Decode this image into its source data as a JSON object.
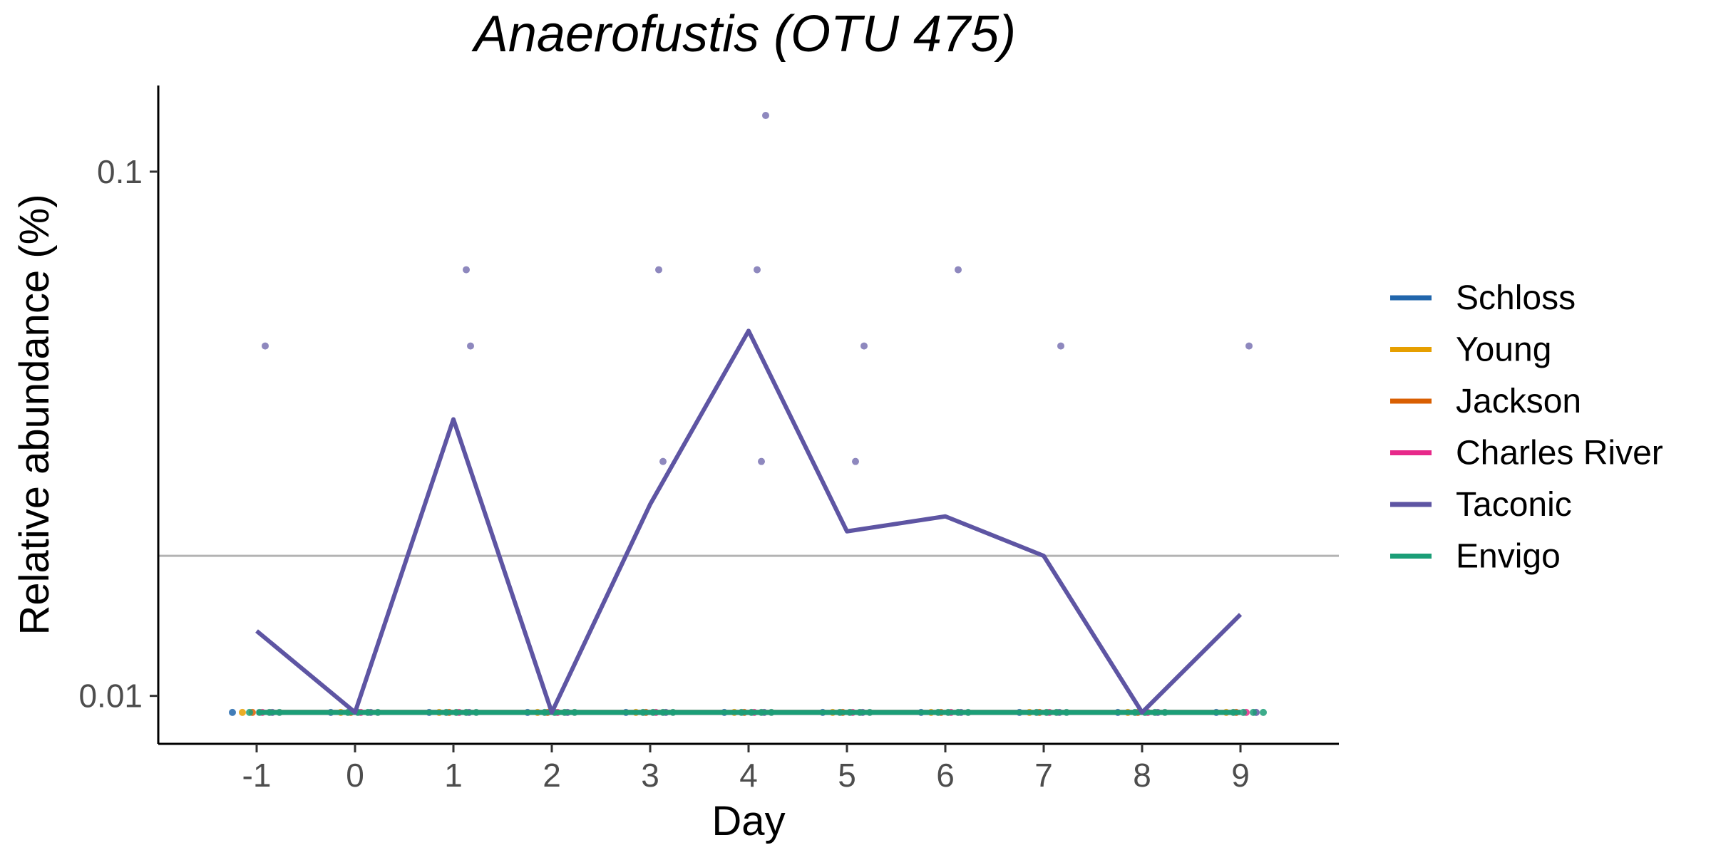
{
  "chart_data": {
    "type": "line",
    "title": "Anaerofustis (OTU 475)",
    "xlabel": "Day",
    "ylabel": "Relative abundance (%)",
    "x_ticks": [
      -1,
      0,
      1,
      2,
      3,
      4,
      5,
      6,
      7,
      8,
      9
    ],
    "x_range": [
      -2,
      10
    ],
    "y_scale": "log10",
    "y_ticks": [
      0.01,
      0.1
    ],
    "y_tick_labels": [
      "0.01",
      "0.1"
    ],
    "y_range": [
      0.0081,
      0.146
    ],
    "limit_of_detection": 0.0185,
    "grid": false,
    "legend_position": "right",
    "series": [
      {
        "name": "Schloss",
        "color": "#2166ac",
        "x": [
          -1,
          0,
          1,
          2,
          3,
          4,
          5,
          6,
          7,
          8,
          9
        ],
        "median": [
          0.0093,
          0.0093,
          0.0093,
          0.0093,
          0.0093,
          0.0093,
          0.0093,
          0.0093,
          0.0093,
          0.0093,
          0.0093
        ]
      },
      {
        "name": "Young",
        "color": "#e69f00",
        "x": [
          -1,
          0,
          1,
          2,
          3,
          4,
          5,
          6,
          7,
          8,
          9
        ],
        "median": [
          0.0093,
          0.0093,
          0.0093,
          0.0093,
          0.0093,
          0.0093,
          0.0093,
          0.0093,
          0.0093,
          0.0093,
          0.0093
        ]
      },
      {
        "name": "Jackson",
        "color": "#d95f02",
        "x": [
          -1,
          0,
          1,
          2,
          3,
          4,
          5,
          6,
          7,
          8,
          9
        ],
        "median": [
          0.0093,
          0.0093,
          0.0093,
          0.0093,
          0.0093,
          0.0093,
          0.0093,
          0.0093,
          0.0093,
          0.0093,
          0.0093
        ]
      },
      {
        "name": "Charles River",
        "color": "#e7298a",
        "x": [
          -1,
          0,
          1,
          2,
          3,
          4,
          5,
          6,
          7,
          8,
          9
        ],
        "median": [
          0.0093,
          0.0093,
          0.0093,
          0.0093,
          0.0093,
          0.0093,
          0.0093,
          0.0093,
          0.0093,
          0.0093,
          0.0093
        ]
      },
      {
        "name": "Taconic",
        "color": "#5e55a3",
        "x": [
          -1,
          0,
          1,
          2,
          3,
          4,
          5,
          6,
          7,
          8,
          9
        ],
        "median": [
          0.0133,
          0.0093,
          0.0337,
          0.0093,
          0.0232,
          0.0497,
          0.0206,
          0.022,
          0.0185,
          0.0093,
          0.0143
        ]
      },
      {
        "name": "Envigo",
        "color": "#1b9e77",
        "x": [
          -1,
          0,
          1,
          2,
          3,
          4,
          5,
          6,
          7,
          8,
          9
        ],
        "median": [
          0.0093,
          0.0093,
          0.0093,
          0.0093,
          0.0093,
          0.0093,
          0.0093,
          0.0093,
          0.0093,
          0.0093,
          0.0093
        ]
      }
    ],
    "points": [
      {
        "series": "Taconic",
        "x": -1,
        "y": 0.0465
      },
      {
        "series": "Taconic",
        "x": 1,
        "y": 0.065
      },
      {
        "series": "Taconic",
        "x": 1,
        "y": 0.0465
      },
      {
        "series": "Taconic",
        "x": 3,
        "y": 0.065
      },
      {
        "series": "Taconic",
        "x": 3,
        "y": 0.028
      },
      {
        "series": "Taconic",
        "x": 4,
        "y": 0.128
      },
      {
        "series": "Taconic",
        "x": 4,
        "y": 0.065
      },
      {
        "series": "Taconic",
        "x": 4,
        "y": 0.028
      },
      {
        "series": "Taconic",
        "x": 5,
        "y": 0.0465
      },
      {
        "series": "Taconic",
        "x": 5,
        "y": 0.028
      },
      {
        "series": "Taconic",
        "x": 6,
        "y": 0.065
      },
      {
        "series": "Taconic",
        "x": 7,
        "y": 0.0465
      },
      {
        "series": "Taconic",
        "x": 9,
        "y": 0.0465
      }
    ]
  }
}
